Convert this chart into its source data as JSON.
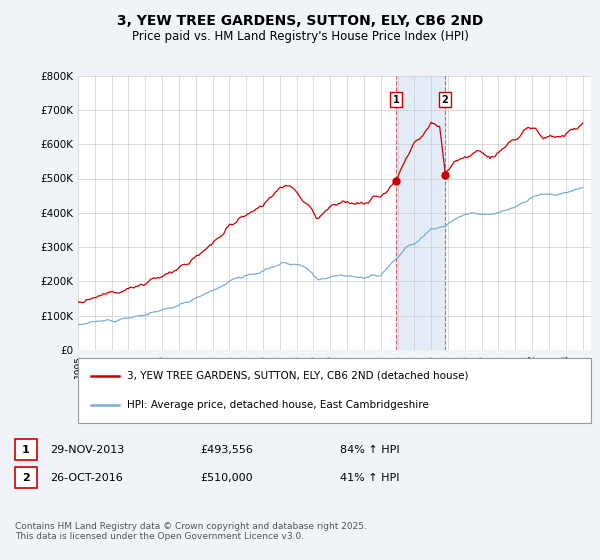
{
  "title": "3, YEW TREE GARDENS, SUTTON, ELY, CB6 2ND",
  "subtitle": "Price paid vs. HM Land Registry's House Price Index (HPI)",
  "ylim": [
    0,
    800000
  ],
  "yticks": [
    0,
    100000,
    200000,
    300000,
    400000,
    500000,
    600000,
    700000,
    800000
  ],
  "ytick_labels": [
    "£0",
    "£100K",
    "£200K",
    "£300K",
    "£400K",
    "£500K",
    "£600K",
    "£700K",
    "£800K"
  ],
  "background_color": "#f0f4f8",
  "plot_bg_color": "#ffffff",
  "grid_color": "#cccccc",
  "red_color": "#cc0000",
  "blue_color": "#7bafd4",
  "shade_color": "#dce8f5",
  "marker1_date_num": 2013.91,
  "marker2_date_num": 2016.82,
  "marker1_price": 493556,
  "marker2_price": 510000,
  "sale1_date": "29-NOV-2013",
  "sale1_price": "£493,556",
  "sale1_hpi": "84% ↑ HPI",
  "sale2_date": "26-OCT-2016",
  "sale2_price": "£510,000",
  "sale2_hpi": "41% ↑ HPI",
  "legend1": "3, YEW TREE GARDENS, SUTTON, ELY, CB6 2ND (detached house)",
  "legend2": "HPI: Average price, detached house, East Cambridgeshire",
  "footnote": "Contains HM Land Registry data © Crown copyright and database right 2025.\nThis data is licensed under the Open Government Licence v3.0."
}
